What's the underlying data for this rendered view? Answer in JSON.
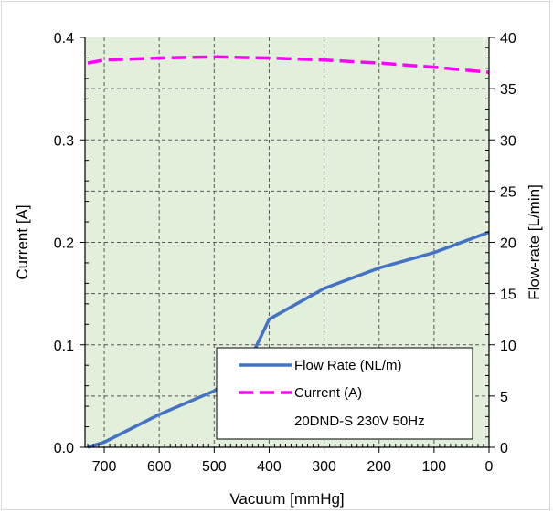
{
  "chart_data": {
    "type": "line",
    "xlabel": "Vacuum [mmHg]",
    "ylabel_left": "Current [A]",
    "ylabel_right": "Flow-rate [L/min]",
    "x_reversed": true,
    "xlim": [
      0,
      735
    ],
    "ylim_left": [
      0,
      0.4
    ],
    "ylim_right": [
      0,
      40
    ],
    "x_ticks": [
      700,
      600,
      500,
      400,
      300,
      200,
      100,
      0
    ],
    "y_left_ticks": [
      0.0,
      0.1,
      0.2,
      0.3,
      0.4
    ],
    "y_left_tick_labels": [
      "0.0",
      "0.1",
      "0.2",
      "0.3",
      "0.4"
    ],
    "y_right_ticks": [
      0,
      5,
      10,
      15,
      20,
      25,
      30,
      35,
      40
    ],
    "grid": true,
    "plot_background": "#e2efda",
    "legend_position": "bottom-right",
    "legend_note": "20DND-S 230V 50Hz",
    "series": [
      {
        "name": "Flow Rate (NL/m)",
        "axis": "right",
        "color": "#4472c4",
        "style": "solid",
        "x": [
          730,
          700,
          600,
          500,
          440,
          400,
          300,
          200,
          100,
          0
        ],
        "y": [
          0,
          0.5,
          3.2,
          5.5,
          8.0,
          12.5,
          15.5,
          17.5,
          19.0,
          21.0
        ]
      },
      {
        "name": "Current (A)",
        "axis": "left",
        "color": "#ff00ff",
        "style": "dashed",
        "x": [
          730,
          700,
          600,
          500,
          400,
          300,
          200,
          100,
          0
        ],
        "y": [
          0.375,
          0.378,
          0.38,
          0.381,
          0.38,
          0.378,
          0.375,
          0.371,
          0.366
        ]
      }
    ]
  }
}
